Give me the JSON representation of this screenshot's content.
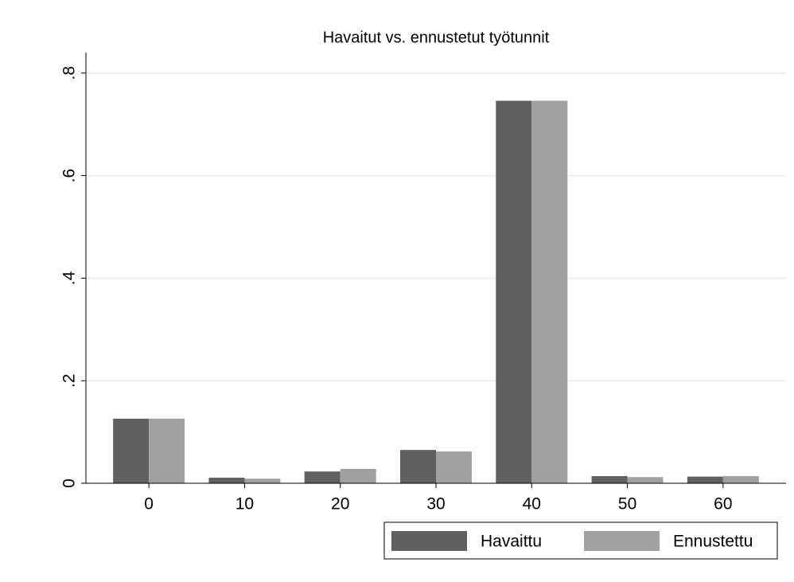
{
  "chart_data": {
    "type": "bar",
    "title": "Havaitut vs. ennustetut työtunnit",
    "categories": [
      "0",
      "10",
      "20",
      "30",
      "40",
      "50",
      "60"
    ],
    "series": [
      {
        "name": "Havaittu",
        "color": "#606060",
        "values": [
          0.126,
          0.011,
          0.023,
          0.065,
          0.746,
          0.014,
          0.013
        ]
      },
      {
        "name": "Ennustettu",
        "color": "#a0a0a0",
        "values": [
          0.126,
          0.009,
          0.028,
          0.062,
          0.746,
          0.012,
          0.014
        ]
      }
    ],
    "ylim": [
      0,
      0.84
    ],
    "yticks": [
      0,
      {
        "value": 0.2,
        "label": ".2"
      },
      {
        "value": 0.4,
        "label": ".4"
      },
      {
        "value": 0.6,
        "label": ".6"
      },
      {
        "value": 0.8,
        "label": ".8"
      }
    ],
    "grid": true,
    "legend": "bottom-right"
  }
}
